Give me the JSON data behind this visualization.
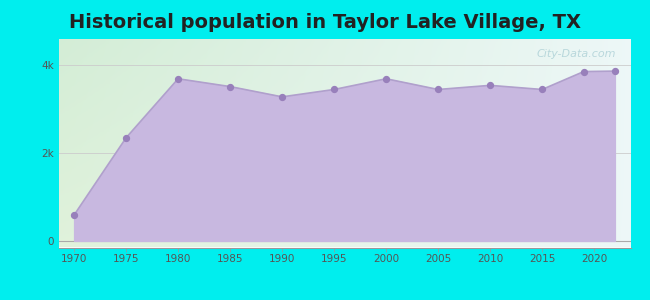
{
  "title": "Historical population in Taylor Lake Village, TX",
  "years": [
    1970,
    1975,
    1980,
    1985,
    1990,
    1995,
    2000,
    2005,
    2010,
    2015,
    2019,
    2022
  ],
  "population": [
    590,
    2350,
    3694,
    3516,
    3282,
    3450,
    3694,
    3450,
    3544,
    3450,
    3858,
    3869
  ],
  "line_color": "#b0a0cc",
  "fill_color": "#c8b8e0",
  "fill_alpha": 1.0,
  "marker_color": "#9880bb",
  "marker_size": 18,
  "bg_outer": "#00eeee",
  "title_fontsize": 14,
  "title_fontweight": "bold",
  "title_color": "#222222",
  "ytick_labels": [
    "0",
    "2k",
    "4k"
  ],
  "ytick_values": [
    0,
    2000,
    4000
  ],
  "ylim": [
    -150,
    4600
  ],
  "xlim": [
    1968.5,
    2023.5
  ],
  "xtick_values": [
    1970,
    1975,
    1980,
    1985,
    1990,
    1995,
    2000,
    2005,
    2010,
    2015,
    2020
  ],
  "watermark_text": "City-Data.com",
  "watermark_color": "#90bfc8",
  "watermark_alpha": 0.55,
  "chart_bg_left_top": "#d4ecd6",
  "chart_bg_right_top": "#eef6f8",
  "chart_bg_bottom": "#e8efe8"
}
